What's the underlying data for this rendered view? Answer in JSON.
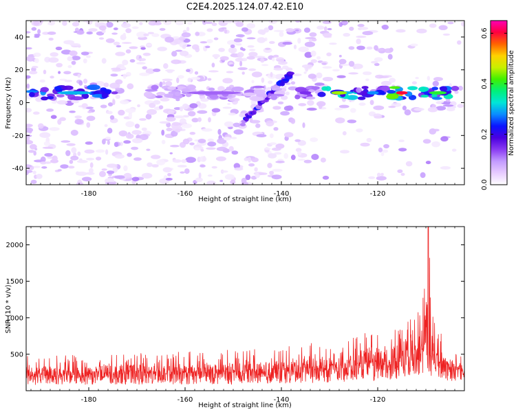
{
  "title": "C2E4.2025.124.07.42.E10",
  "chart_data": [
    {
      "type": "heatmap",
      "xlabel": "Height of straight line (km)",
      "ylabel": "Frequency (Hz)",
      "xlim": [
        -193,
        -102
      ],
      "ylim": [
        -50,
        50
      ],
      "xticks": [
        -180,
        -160,
        -140,
        -120
      ],
      "yticks": [
        -40,
        -20,
        0,
        20,
        40
      ],
      "colorbar": {
        "label": "Normalized spectral amplitude",
        "lim": [
          0.0,
          0.65
        ],
        "ticks": [
          "0.0",
          "0.2",
          "0.4",
          "0.6"
        ],
        "colormap": [
          "#ffffff",
          "#e7ccff",
          "#c39bff",
          "#8a3cf2",
          "#4b00e0",
          "#0a14ff",
          "#0a8cff",
          "#00e5d8",
          "#00f07a",
          "#40f000",
          "#c8f000",
          "#ffd200",
          "#ff6400",
          "#ff0040",
          "#ff00b4"
        ]
      },
      "dominant_band": {
        "frequency_hz": 6,
        "segments": [
          {
            "x": [
              -192,
              -174
            ],
            "amplitude": 0.3
          },
          {
            "x": [
              -168,
              -140
            ],
            "amplitude": 0.12
          },
          {
            "x": [
              -138,
              -132
            ],
            "amplitude": 0.15
          },
          {
            "x": [
              -132,
              -124
            ],
            "amplitude": 0.45
          },
          {
            "x": [
              -124,
              -118
            ],
            "amplitude": 0.28
          },
          {
            "x": [
              -118,
              -112
            ],
            "amplitude": 0.6
          },
          {
            "x": [
              -112,
              -103
            ],
            "amplitude": 0.4
          }
        ]
      },
      "diagonal_feature": {
        "x": [
          -148,
          -138
        ],
        "frequency_hz": [
          -12,
          18
        ],
        "amplitude": 0.2
      }
    },
    {
      "type": "line",
      "xlabel": "Height of straight line (km)",
      "ylabel": "SNR (10 * v/v)",
      "xlim": [
        -193,
        -102
      ],
      "ylim": [
        0,
        2250
      ],
      "xticks": [
        -180,
        -160,
        -140,
        -120
      ],
      "yticks": [
        500,
        1000,
        1500,
        2000
      ],
      "color": "#ee2222",
      "envelope": {
        "x": [
          -193,
          -175,
          -155,
          -140,
          -130,
          -122,
          -117,
          -114,
          -112,
          -110.5,
          -109.5,
          -108,
          -105,
          -102
        ],
        "base": [
          200,
          210,
          220,
          240,
          280,
          320,
          360,
          450,
          500,
          520,
          480,
          400,
          300,
          260
        ],
        "peak": [
          480,
          520,
          560,
          600,
          700,
          800,
          900,
          1100,
          1200,
          1400,
          2250,
          900,
          650,
          520
        ]
      }
    }
  ]
}
